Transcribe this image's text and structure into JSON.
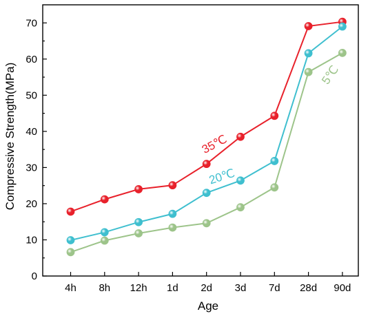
{
  "chart_data": {
    "type": "line",
    "title": "",
    "xlabel": "Age",
    "ylabel": "Compressive Strength(MPa)",
    "categories": [
      "4h",
      "8h",
      "12h",
      "1d",
      "2d",
      "3d",
      "7d",
      "28d",
      "90d"
    ],
    "ylim": [
      0,
      75
    ],
    "yticks": [
      0,
      10,
      20,
      30,
      40,
      50,
      60,
      70
    ],
    "grid": false,
    "legend": "none",
    "series": [
      {
        "name": "35℃",
        "color": "#e8212b",
        "values": [
          17.8,
          21.2,
          24.0,
          25.1,
          31.0,
          38.5,
          44.3,
          69.1,
          70.3
        ]
      },
      {
        "name": "20℃",
        "color": "#3fbfcf",
        "values": [
          9.9,
          12.1,
          14.9,
          17.2,
          23.0,
          26.4,
          31.8,
          61.6,
          69.0
        ]
      },
      {
        "name": "5℃",
        "color": "#9dc48a",
        "values": [
          6.6,
          9.8,
          11.8,
          13.4,
          14.6,
          19.0,
          24.5,
          56.4,
          61.7
        ]
      }
    ],
    "annotations": [
      {
        "text": "35℃",
        "series": 0,
        "x": "2d",
        "y": 35.5,
        "rotate": -28
      },
      {
        "text": "20℃",
        "series": 1,
        "x": "2d",
        "y": 26.5,
        "rotate": -18
      },
      {
        "text": "5℃",
        "series": 2,
        "x": "28d",
        "y": 55.0,
        "rotate": -55
      }
    ]
  }
}
